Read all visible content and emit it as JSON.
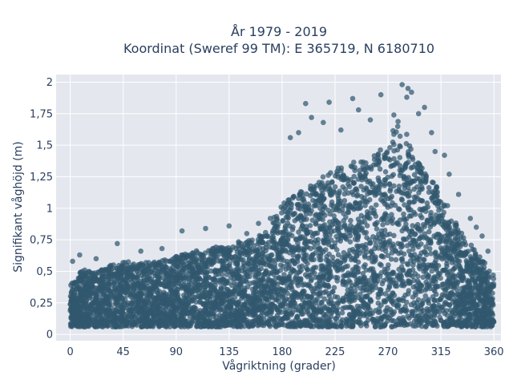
{
  "chart_data": {
    "type": "scatter",
    "title": "År 1979 - 2019",
    "subtitle": "Koordinat (Sweref 99 TM): E 365719, N 6180710",
    "xlabel": "Vågriktning (grader)",
    "ylabel": "Signifikant våghöjd (m)",
    "xlim": [
      -12,
      366
    ],
    "ylim": [
      -0.05,
      2.06
    ],
    "x_ticks": [
      0,
      45,
      90,
      135,
      180,
      225,
      270,
      315,
      360
    ],
    "x_tick_labels": [
      "0",
      "45",
      "90",
      "135",
      "180",
      "225",
      "270",
      "315",
      "360"
    ],
    "y_ticks": [
      0,
      0.25,
      0.5,
      0.75,
      1,
      1.25,
      1.5,
      1.75,
      2
    ],
    "y_tick_labels": [
      "0",
      "0,25",
      "0,5",
      "0,75",
      "1",
      "1,25",
      "1,5",
      "1,75",
      "2"
    ],
    "grid": true,
    "legend": "none",
    "marker_color": "#30586e",
    "plot_background": "#e5e7ef",
    "point_density_note_points": [
      [
        0,
        0.42
      ],
      [
        10,
        0.55
      ],
      [
        20,
        0.52
      ],
      [
        30,
        0.58
      ],
      [
        45,
        0.62
      ],
      [
        60,
        0.6
      ],
      [
        75,
        0.62
      ],
      [
        90,
        0.66
      ],
      [
        105,
        0.7
      ],
      [
        120,
        0.73
      ],
      [
        135,
        0.76
      ],
      [
        150,
        0.8
      ],
      [
        165,
        0.85
      ],
      [
        180,
        1.1
      ],
      [
        195,
        1.2
      ],
      [
        210,
        1.3
      ],
      [
        225,
        1.4
      ],
      [
        240,
        1.45
      ],
      [
        255,
        1.5
      ],
      [
        270,
        1.6
      ],
      [
        280,
        1.9
      ],
      [
        290,
        1.55
      ],
      [
        300,
        1.4
      ],
      [
        315,
        1.2
      ],
      [
        330,
        0.9
      ],
      [
        345,
        0.7
      ],
      [
        360,
        0.5
      ]
    ],
    "outliers": [
      {
        "x": 282,
        "y": 1.98
      },
      {
        "x": 287,
        "y": 1.95
      },
      {
        "x": 290,
        "y": 1.92
      },
      {
        "x": 286,
        "y": 1.88
      },
      {
        "x": 240,
        "y": 1.87
      },
      {
        "x": 264,
        "y": 1.9
      },
      {
        "x": 200,
        "y": 1.83
      },
      {
        "x": 220,
        "y": 1.84
      },
      {
        "x": 205,
        "y": 1.72
      },
      {
        "x": 245,
        "y": 1.78
      },
      {
        "x": 255,
        "y": 1.7
      },
      {
        "x": 275,
        "y": 1.74
      },
      {
        "x": 301,
        "y": 1.8
      },
      {
        "x": 187,
        "y": 1.56
      },
      {
        "x": 194,
        "y": 1.6
      },
      {
        "x": 215,
        "y": 1.68
      },
      {
        "x": 230,
        "y": 1.62
      },
      {
        "x": 296,
        "y": 1.75
      },
      {
        "x": 307,
        "y": 1.6
      },
      {
        "x": 310,
        "y": 1.45
      },
      {
        "x": 318,
        "y": 1.42
      },
      {
        "x": 322,
        "y": 1.27
      },
      {
        "x": 330,
        "y": 1.11
      },
      {
        "x": 340,
        "y": 0.92
      },
      {
        "x": 345,
        "y": 0.85
      },
      {
        "x": 350,
        "y": 0.78
      },
      {
        "x": 355,
        "y": 0.66
      },
      {
        "x": 40,
        "y": 0.72
      },
      {
        "x": 60,
        "y": 0.66
      },
      {
        "x": 78,
        "y": 0.68
      },
      {
        "x": 95,
        "y": 0.82
      },
      {
        "x": 115,
        "y": 0.84
      },
      {
        "x": 135,
        "y": 0.86
      },
      {
        "x": 150,
        "y": 0.8
      },
      {
        "x": 160,
        "y": 0.88
      },
      {
        "x": 170,
        "y": 0.92
      },
      {
        "x": 8,
        "y": 0.63
      },
      {
        "x": 22,
        "y": 0.6
      },
      {
        "x": 2,
        "y": 0.58
      }
    ]
  }
}
